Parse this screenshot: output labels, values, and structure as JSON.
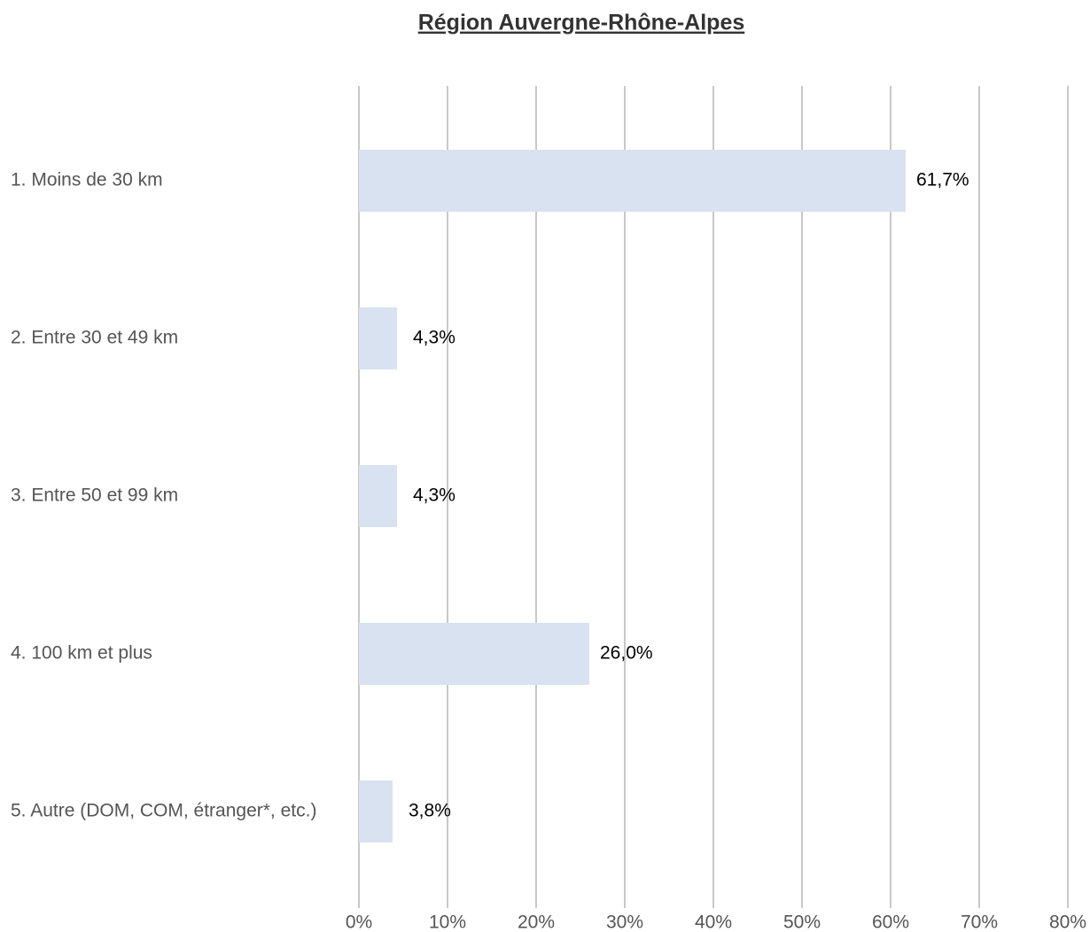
{
  "chart_data": {
    "type": "bar",
    "orientation": "horizontal",
    "title": "Région Auvergne-Rhône-Alpes",
    "categories": [
      "1. Moins de 30 km",
      "2. Entre 30 et 49 km",
      "3. Entre 50 et 99 km",
      "4. 100 km et plus",
      "5. Autre (DOM, COM, étranger*, etc.)"
    ],
    "values": [
      61.7,
      4.3,
      4.3,
      26.0,
      3.8
    ],
    "value_labels": [
      "61,7%",
      "4,3%",
      "4,3%",
      "26,0%",
      "3,8%"
    ],
    "color": "#d9e2f0",
    "xlim": [
      0,
      80
    ],
    "xticks": [
      {
        "value": 0,
        "label": "0%"
      },
      {
        "value": 10,
        "label": "10%"
      },
      {
        "value": 20,
        "label": "20%"
      },
      {
        "value": 30,
        "label": "30%"
      },
      {
        "value": 40,
        "label": "40%"
      },
      {
        "value": 50,
        "label": "50%"
      },
      {
        "value": 60,
        "label": "60%"
      },
      {
        "value": 70,
        "label": "70%"
      },
      {
        "value": 80,
        "label": "80%"
      }
    ],
    "grid": true
  }
}
